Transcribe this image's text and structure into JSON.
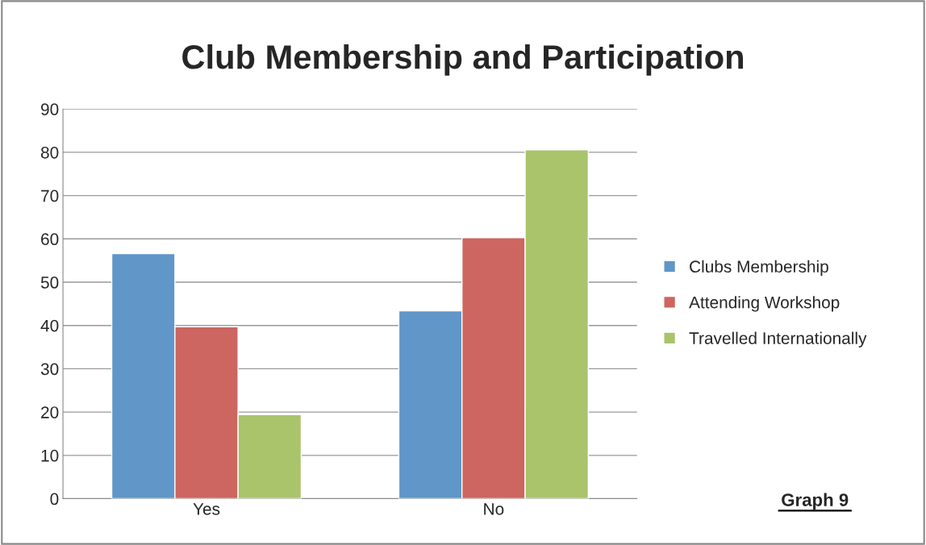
{
  "chart_data": {
    "type": "bar",
    "title": "Club Membership and Participation",
    "categories": [
      "Yes",
      "No"
    ],
    "series": [
      {
        "name": "Clubs Membership",
        "color": "#6096c8",
        "values": [
          56.6,
          43.4
        ]
      },
      {
        "name": "Attending Workshop",
        "color": "#cd6560",
        "values": [
          39.7,
          60.3
        ]
      },
      {
        "name": "Travelled Internationally",
        "color": "#a9c46b",
        "values": [
          19.4,
          80.6
        ]
      }
    ],
    "ylim": [
      0,
      90
    ],
    "yticks": [
      0,
      10,
      20,
      30,
      40,
      50,
      60,
      70,
      80,
      90
    ],
    "grid": "y",
    "legend": "right",
    "annotations": [
      "Graph 9"
    ]
  }
}
